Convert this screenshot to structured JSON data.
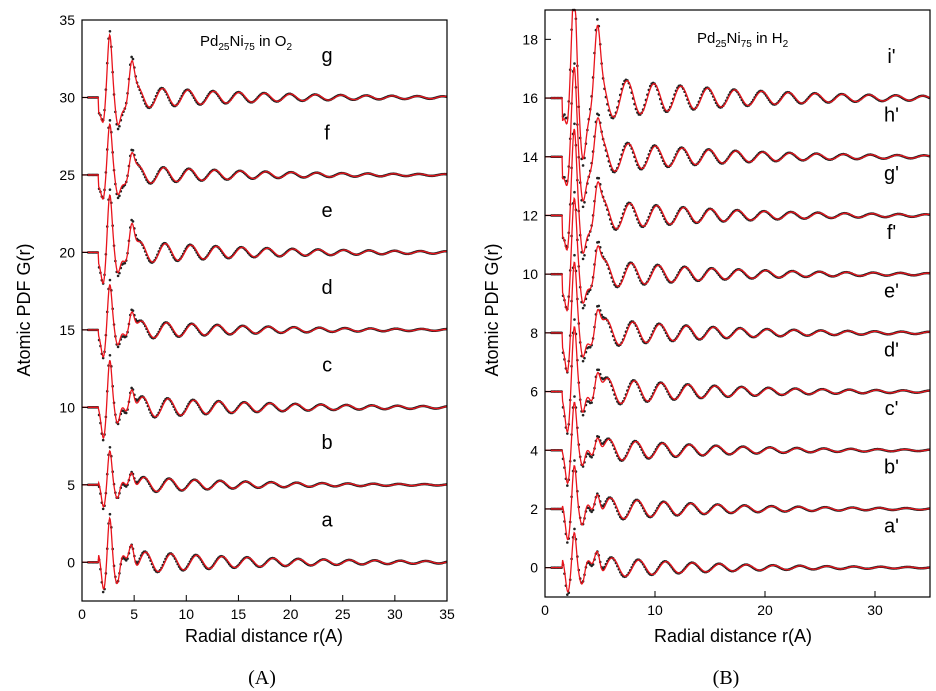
{
  "captions": {
    "left": "(A)",
    "right": "(B)"
  },
  "colors": {
    "experimental": "#222222",
    "model": "#e8141c",
    "axis": "#000000"
  },
  "chart_data": [
    {
      "type": "line",
      "title_parts": {
        "el1": "Pd",
        "sub1": "25",
        "el2": "Ni",
        "sub2": "75",
        "mid": " in O",
        "sub3": "2"
      },
      "xlabel": "Radial distance r(A)",
      "ylabel": "Atomic PDF G(r)",
      "xlim": [
        0,
        35
      ],
      "ylim": [
        -2.5,
        35
      ],
      "xticks": [
        "0",
        "5",
        "10",
        "15",
        "20",
        "25",
        "30",
        "35"
      ],
      "yticks": [
        "0",
        "5",
        "10",
        "15",
        "20",
        "25",
        "30",
        "35"
      ],
      "series": [
        {
          "name": "a",
          "offset": 0,
          "scale": 1.0,
          "first_peak": 3.6,
          "second_peak": 1.8
        },
        {
          "name": "b",
          "offset": 5,
          "scale": 0.75,
          "first_peak": 2.6,
          "second_peak": 1.3
        },
        {
          "name": "c",
          "offset": 10,
          "scale": 1.0,
          "first_peak": 3.3,
          "second_peak": 1.8
        },
        {
          "name": "d",
          "offset": 15,
          "scale": 0.85,
          "first_peak": 2.9,
          "second_peak": 1.6
        },
        {
          "name": "e",
          "offset": 20,
          "scale": 1.0,
          "first_peak": 3.4,
          "second_peak": 2.2
        },
        {
          "name": "f",
          "offset": 25,
          "scale": 0.85,
          "first_peak": 2.8,
          "second_peak": 1.5
        },
        {
          "name": "g",
          "offset": 30,
          "scale": 1.0,
          "first_peak": 3.3,
          "second_peak": 2.2
        }
      ]
    },
    {
      "type": "line",
      "title_parts": {
        "el1": "Pd",
        "sub1": "25",
        "el2": "Ni",
        "sub2": "75",
        "mid": " in H",
        "sub3": "2"
      },
      "xlabel": "Radial distance r(A)",
      "ylabel": "Atomic PDF G(r)",
      "xlim": [
        0,
        35
      ],
      "ylim": [
        -1,
        19
      ],
      "xticks": [
        "0",
        "10",
        "20",
        "30"
      ],
      "yticks": [
        "0",
        "2",
        "4",
        "6",
        "8",
        "10",
        "12",
        "14",
        "16",
        "18"
      ],
      "series": [
        {
          "name": "a'",
          "offset": 0,
          "scale": 0.55,
          "first_peak": 1.6,
          "second_peak": 0.9
        },
        {
          "name": "b'",
          "offset": 2,
          "scale": 0.6,
          "first_peak": 1.8,
          "second_peak": 0.9
        },
        {
          "name": "c'",
          "offset": 4,
          "scale": 0.6,
          "first_peak": 1.8,
          "second_peak": 0.8
        },
        {
          "name": "d'",
          "offset": 6,
          "scale": 0.7,
          "first_peak": 2.2,
          "second_peak": 1.0
        },
        {
          "name": "e'",
          "offset": 8,
          "scale": 0.7,
          "first_peak": 2.2,
          "second_peak": 1.0
        },
        {
          "name": "f'",
          "offset": 10,
          "scale": 0.7,
          "first_peak": 2.2,
          "second_peak": 1.0
        },
        {
          "name": "g'",
          "offset": 12,
          "scale": 0.75,
          "first_peak": 2.4,
          "second_peak": 1.0
        },
        {
          "name": "h'",
          "offset": 14,
          "scale": 0.8,
          "first_peak": 2.4,
          "second_peak": 1.0
        },
        {
          "name": "i'",
          "offset": 16,
          "scale": 1.0,
          "first_peak": 2.9,
          "second_peak": 1.9
        }
      ]
    }
  ]
}
